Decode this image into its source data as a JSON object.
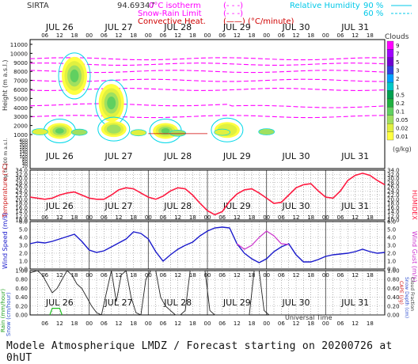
{
  "header": {
    "station": "SIRTA",
    "coords": "94.69347",
    "legend_isotherm": "0°C isotherm",
    "legend_snowrain": "Snow-Rain Limit",
    "legend_convective": "Convective Heat. (°C/minute)",
    "legend_dash": "(- - -)",
    "legend_rh": "Relative Humidity",
    "rh90": "90 %",
    "rh60": "60 %"
  },
  "time_axis": {
    "days": [
      "JUL 26",
      "JUL 27",
      "JUL 28",
      "JUL 29",
      "JUL 30",
      "JUL 31"
    ],
    "hours": [
      "06",
      "12",
      "18",
      "00",
      "06",
      "12",
      "18",
      "00",
      "06",
      "12",
      "18",
      "00",
      "06",
      "12",
      "18",
      "00",
      "06",
      "12",
      "18",
      "00",
      "06",
      "12",
      "18"
    ],
    "bottom_label": "Universal Time"
  },
  "clouds_legend": {
    "title": "Clouds",
    "unit": "(g/kg)",
    "levels": [
      "9",
      "7",
      "5",
      "3",
      "2",
      "1",
      "0.5",
      "0.2",
      "0.1",
      "0.05",
      "0.02",
      "0.01"
    ],
    "colors": [
      "#ff00ff",
      "#a000ff",
      "#7000d0",
      "#3040e0",
      "#00a0ff",
      "#00c8c8",
      "#00a050",
      "#20b040",
      "#60d060",
      "#a0e060",
      "#e0f040",
      "#ffff40"
    ]
  },
  "footer": "Modele Atmospherique LMDZ / Forecast starting on 20200726 at 0hUT",
  "chart_data": [
    {
      "type": "heatmap",
      "panel": "clouds",
      "ylabel": "Height (m a.s.l.)",
      "ylabel2": "Up to 200 m a.s.l.",
      "yticks": [
        11000,
        10000,
        9000,
        8000,
        7000,
        6000,
        5000,
        4000,
        3000,
        2000,
        1000,
        400,
        300,
        200,
        180,
        160,
        140,
        120,
        100,
        80,
        60,
        40,
        20
      ],
      "blobs": [
        {
          "t": 18,
          "h": 7500,
          "level": 3
        },
        {
          "t": 33,
          "h": 4500,
          "level": 3
        },
        {
          "t": 12,
          "h": 1400,
          "level": 3
        },
        {
          "t": 34,
          "h": 1600,
          "level": 2
        },
        {
          "t": 55,
          "h": 1400,
          "level": 3
        },
        {
          "t": 80,
          "h": 1500,
          "level": 1
        }
      ]
    },
    {
      "type": "line",
      "panel": "temperature",
      "ylabel": "Temperature (°C)",
      "ylabel_right": "HUMIDEX",
      "yticks": [
        34,
        32,
        30,
        28,
        26,
        24,
        22,
        20,
        18,
        16,
        14,
        12,
        10
      ],
      "ylim": [
        10,
        34
      ],
      "x": [
        0,
        3,
        6,
        9,
        12,
        15,
        18,
        21,
        24,
        27,
        30,
        33,
        36,
        39,
        42,
        45,
        48,
        51,
        54,
        57,
        60,
        63,
        66,
        69,
        72,
        75,
        78,
        81,
        84,
        87,
        90,
        93,
        96,
        99,
        102,
        105,
        108,
        111,
        114,
        117,
        120,
        123,
        126,
        129,
        132,
        135,
        138,
        141,
        144
      ],
      "values": [
        21,
        20.5,
        20,
        20.5,
        22,
        23,
        23.5,
        22,
        20.5,
        20,
        20,
        22,
        24.5,
        25.5,
        25,
        23,
        21,
        20,
        21.5,
        24,
        25.5,
        25,
        22,
        18,
        14.5,
        12.5,
        14,
        19,
        22.5,
        24.5,
        25,
        23,
        20.5,
        18,
        18.5,
        22,
        25.5,
        27,
        27.5,
        24,
        21,
        20.5,
        24,
        29,
        31.5,
        32.5,
        31.5,
        29,
        27
      ]
    },
    {
      "type": "line",
      "panel": "wind",
      "ylabel": "Wind Speed (m/s)",
      "ylabel_right": "Wind Gust (m/s)",
      "yticks": [
        6.0,
        5.0,
        4.0,
        3.0,
        2.0,
        1.0,
        0.0
      ],
      "ylim": [
        0,
        6
      ],
      "x": [
        0,
        3,
        6,
        9,
        12,
        15,
        18,
        21,
        24,
        27,
        30,
        33,
        36,
        39,
        42,
        45,
        48,
        51,
        54,
        57,
        60,
        63,
        66,
        69,
        72,
        75,
        78,
        81,
        84,
        87,
        90,
        93,
        96,
        99,
        102,
        105,
        108,
        111,
        114,
        117,
        120,
        123,
        126,
        129,
        132,
        135,
        138,
        141,
        144
      ],
      "values": [
        3.2,
        3.4,
        3.3,
        3.5,
        3.8,
        4.1,
        4.4,
        3.5,
        2.4,
        2.1,
        2.3,
        2.8,
        3.3,
        3.8,
        4.7,
        4.5,
        3.8,
        2.2,
        1.0,
        1.8,
        2.5,
        3.0,
        3.4,
        4.2,
        4.8,
        5.2,
        5.3,
        5.2,
        3.2,
        2.0,
        1.3,
        0.8,
        1.3,
        2.2,
        2.8,
        3.2,
        1.8,
        0.9,
        0.9,
        1.2,
        1.6,
        1.8,
        1.9,
        2.0,
        2.2,
        2.5,
        2.2,
        2.0,
        2.1
      ],
      "gust": {
        "x": [
          84,
          87,
          90,
          93,
          96,
          99,
          102,
          105
        ],
        "values": [
          3.2,
          2.5,
          3.0,
          4.0,
          4.8,
          4.2,
          3.2,
          3.1
        ]
      }
    },
    {
      "type": "line",
      "panel": "precip",
      "ylabel": "Rain (mm/hour) Snow (cm/hour)",
      "ylabel_right": "CAPE (J/g) Snow Depth (cm) Cloud Fraction",
      "yticks": [
        1.0,
        0.8,
        0.6,
        0.4,
        0.2,
        0.0
      ],
      "ylim": [
        0,
        1
      ],
      "cloud_fraction": {
        "x": [
          0,
          3,
          5,
          7,
          9,
          11,
          13,
          15,
          17,
          19,
          21,
          23,
          25,
          27,
          29,
          31,
          33,
          35,
          37,
          39,
          41,
          43,
          45,
          47,
          49,
          51,
          53,
          55,
          57,
          59,
          61,
          63,
          65,
          67,
          69,
          71,
          73,
          75,
          77,
          79,
          81,
          83,
          85,
          87,
          89,
          91,
          93,
          95,
          97,
          99,
          101,
          103,
          105,
          107,
          109,
          111,
          113,
          115,
          117,
          119,
          121,
          123,
          125,
          127,
          129,
          131,
          133,
          135,
          137,
          139,
          141,
          144
        ],
        "values": [
          0.95,
          1.0,
          0.9,
          0.7,
          0.5,
          0.6,
          0.8,
          1.0,
          0.9,
          0.7,
          0.6,
          0.4,
          0.2,
          0.05,
          0.0,
          0.5,
          1.0,
          0.3,
          0.9,
          1.0,
          0.4,
          0.05,
          0.0,
          0.8,
          1.0,
          1.0,
          0.4,
          0.2,
          0.1,
          0.0,
          0.0,
          0.1,
          1.0,
          1.0,
          1.0,
          1.0,
          0.1,
          0.0,
          0.0,
          0.0,
          0.0,
          0.0,
          0.0,
          0.0,
          0.0,
          1.0,
          1.0,
          0.1,
          0.0,
          0.0,
          0.0,
          0.0,
          0.0,
          0.0,
          0.0,
          0.0,
          0.0,
          0.0,
          0.0,
          0.0,
          0.0,
          0.0,
          0.0,
          0.0,
          0.0,
          0.0,
          0.0,
          0.0,
          0.0,
          0.0,
          0.0,
          0.0
        ]
      },
      "rain": {
        "x": [
          8,
          9,
          10,
          12,
          13
        ],
        "values": [
          0.0,
          0.15,
          0.15,
          0.15,
          0.0
        ]
      }
    }
  ]
}
